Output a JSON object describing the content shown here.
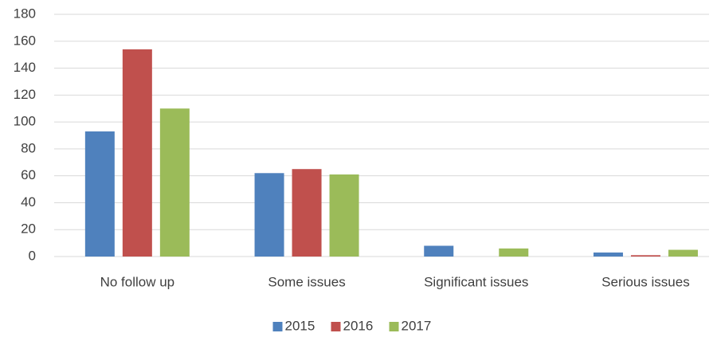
{
  "chart_data": {
    "type": "bar",
    "categories": [
      "No follow up",
      "Some issues",
      "Significant issues",
      "Serious issues"
    ],
    "series": [
      {
        "name": "2015",
        "color": "#4f81bd",
        "values": [
          93,
          62,
          8,
          3
        ]
      },
      {
        "name": "2016",
        "color": "#c0504d",
        "values": [
          154,
          65,
          0,
          1
        ]
      },
      {
        "name": "2017",
        "color": "#9bbb59",
        "values": [
          110,
          61,
          6,
          5
        ]
      }
    ],
    "ylim": [
      0,
      180
    ],
    "yticks": [
      0,
      20,
      40,
      60,
      80,
      100,
      120,
      140,
      160,
      180
    ],
    "grid": true,
    "legend": "bottom"
  }
}
